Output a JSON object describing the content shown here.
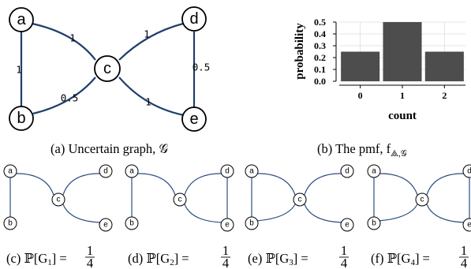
{
  "graph": {
    "nodes": [
      "a",
      "b",
      "c",
      "d",
      "e"
    ],
    "edges": [
      {
        "from": "a",
        "to": "b",
        "weight": "1"
      },
      {
        "from": "a",
        "to": "c",
        "weight": "1"
      },
      {
        "from": "b",
        "to": "c",
        "weight": "0.5"
      },
      {
        "from": "c",
        "to": "d",
        "weight": "1"
      },
      {
        "from": "c",
        "to": "e",
        "weight": "1"
      },
      {
        "from": "d",
        "to": "e",
        "weight": "0.5"
      }
    ]
  },
  "captions": {
    "a": "(a) Uncertain graph, 𝒢",
    "b": "(b) The pmf, f",
    "b_sub": "⟁,𝒢",
    "c_prefix": "(c) ℙ[G",
    "c_idx": "1",
    "d_prefix": "(d) ℙ[G",
    "d_idx": "2",
    "e_prefix": "(e) ℙ[G",
    "e_idx": "3",
    "f_prefix": "(f) ℙ[G",
    "f_idx": "4",
    "suffix": "] =",
    "frac_num": "1",
    "frac_den": "4"
  },
  "samples": [
    {
      "edges": [
        [
          "a",
          "b"
        ],
        [
          "a",
          "c"
        ],
        [
          "c",
          "d"
        ],
        [
          "c",
          "e"
        ]
      ]
    },
    {
      "edges": [
        [
          "a",
          "b"
        ],
        [
          "a",
          "c"
        ],
        [
          "c",
          "d"
        ],
        [
          "c",
          "e"
        ],
        [
          "d",
          "e"
        ]
      ]
    },
    {
      "edges": [
        [
          "a",
          "b"
        ],
        [
          "a",
          "c"
        ],
        [
          "b",
          "c"
        ],
        [
          "c",
          "d"
        ],
        [
          "c",
          "e"
        ]
      ]
    },
    {
      "edges": [
        [
          "a",
          "b"
        ],
        [
          "a",
          "c"
        ],
        [
          "b",
          "c"
        ],
        [
          "c",
          "d"
        ],
        [
          "c",
          "e"
        ],
        [
          "d",
          "e"
        ]
      ]
    }
  ],
  "chart_data": {
    "type": "bar",
    "categories": [
      "0",
      "1",
      "2"
    ],
    "values": [
      0.25,
      0.5,
      0.25
    ],
    "xlabel": "count",
    "ylabel": "probability",
    "ylim": [
      0,
      0.5
    ],
    "yticks": [
      "0.0",
      "0.1",
      "0.2",
      "0.3",
      "0.4",
      "0.5"
    ],
    "grid": true
  }
}
